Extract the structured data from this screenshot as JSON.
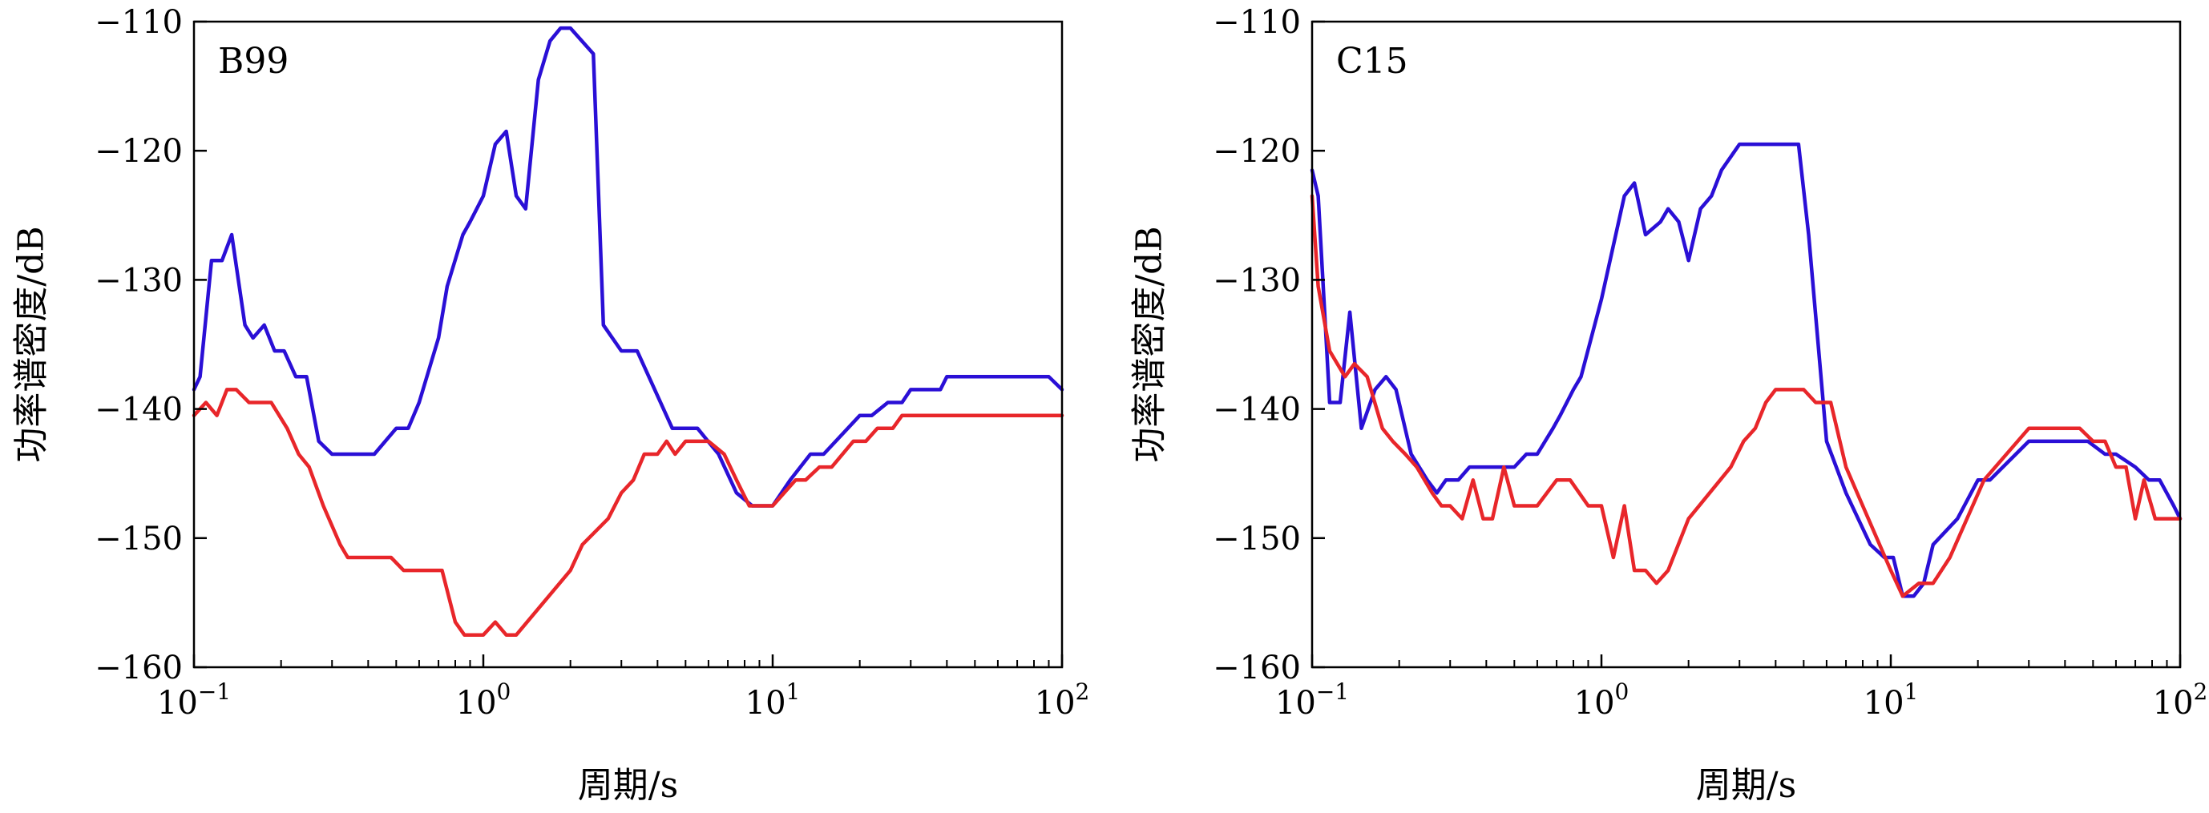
{
  "chart_data": [
    {
      "type": "line",
      "panel_label": "B99",
      "xlabel": "周期/s",
      "ylabel": "功率谱密度/dB",
      "x_scale": "log",
      "xlim": [
        0.1,
        100
      ],
      "ylim": [
        -160,
        -110
      ],
      "x_ticks": [
        {
          "value": 0.1,
          "base": "10",
          "exp": "−1"
        },
        {
          "value": 1,
          "base": "10",
          "exp": "0"
        },
        {
          "value": 10,
          "base": "10",
          "exp": "1"
        },
        {
          "value": 100,
          "base": "10",
          "exp": "2"
        }
      ],
      "y_ticks": [
        {
          "value": -110,
          "label": "−110"
        },
        {
          "value": -120,
          "label": "−120"
        },
        {
          "value": -130,
          "label": "−130"
        },
        {
          "value": -140,
          "label": "−140"
        },
        {
          "value": -150,
          "label": "−150"
        },
        {
          "value": -160,
          "label": "−160"
        }
      ],
      "series": [
        {
          "color": "#2a0fd6",
          "points": [
            [
              0.1,
              -138.5
            ],
            [
              0.105,
              -137.5
            ],
            [
              0.115,
              -128.5
            ],
            [
              0.125,
              -128.5
            ],
            [
              0.135,
              -126.5
            ],
            [
              0.15,
              -133.5
            ],
            [
              0.16,
              -134.5
            ],
            [
              0.175,
              -133.5
            ],
            [
              0.19,
              -135.5
            ],
            [
              0.205,
              -135.5
            ],
            [
              0.225,
              -137.5
            ],
            [
              0.245,
              -137.5
            ],
            [
              0.27,
              -142.5
            ],
            [
              0.3,
              -143.5
            ],
            [
              0.35,
              -143.5
            ],
            [
              0.42,
              -143.5
            ],
            [
              0.5,
              -141.5
            ],
            [
              0.55,
              -141.5
            ],
            [
              0.6,
              -139.5
            ],
            [
              0.7,
              -134.5
            ],
            [
              0.75,
              -130.5
            ],
            [
              0.85,
              -126.5
            ],
            [
              0.9,
              -125.5
            ],
            [
              1.0,
              -123.5
            ],
            [
              1.1,
              -119.5
            ],
            [
              1.2,
              -118.5
            ],
            [
              1.3,
              -123.5
            ],
            [
              1.4,
              -124.5
            ],
            [
              1.55,
              -114.5
            ],
            [
              1.7,
              -111.5
            ],
            [
              1.85,
              -110.5
            ],
            [
              2.0,
              -110.5
            ],
            [
              2.4,
              -112.5
            ],
            [
              2.6,
              -133.5
            ],
            [
              3.0,
              -135.5
            ],
            [
              3.4,
              -135.5
            ],
            [
              4.5,
              -141.5
            ],
            [
              5.5,
              -141.5
            ],
            [
              6.5,
              -143.5
            ],
            [
              7.5,
              -146.5
            ],
            [
              8.5,
              -147.5
            ],
            [
              10.0,
              -147.5
            ],
            [
              11.5,
              -145.5
            ],
            [
              13.5,
              -143.5
            ],
            [
              15.0,
              -143.5
            ],
            [
              20.0,
              -140.5
            ],
            [
              22.0,
              -140.5
            ],
            [
              25.0,
              -139.5
            ],
            [
              28.0,
              -139.5
            ],
            [
              30.0,
              -138.5
            ],
            [
              38.0,
              -138.5
            ],
            [
              40.0,
              -137.5
            ],
            [
              90.0,
              -137.5
            ],
            [
              100.0,
              -138.5
            ]
          ]
        },
        {
          "color": "#e8262a",
          "points": [
            [
              0.1,
              -140.5
            ],
            [
              0.11,
              -139.5
            ],
            [
              0.12,
              -140.5
            ],
            [
              0.13,
              -138.5
            ],
            [
              0.14,
              -138.5
            ],
            [
              0.155,
              -139.5
            ],
            [
              0.185,
              -139.5
            ],
            [
              0.21,
              -141.5
            ],
            [
              0.23,
              -143.5
            ],
            [
              0.25,
              -144.5
            ],
            [
              0.28,
              -147.5
            ],
            [
              0.32,
              -150.5
            ],
            [
              0.34,
              -151.5
            ],
            [
              0.4,
              -151.5
            ],
            [
              0.48,
              -151.5
            ],
            [
              0.53,
              -152.5
            ],
            [
              0.6,
              -152.5
            ],
            [
              0.72,
              -152.5
            ],
            [
              0.8,
              -156.5
            ],
            [
              0.86,
              -157.5
            ],
            [
              1.0,
              -157.5
            ],
            [
              1.1,
              -156.5
            ],
            [
              1.2,
              -157.5
            ],
            [
              1.3,
              -157.5
            ],
            [
              2.0,
              -152.5
            ],
            [
              2.2,
              -150.5
            ],
            [
              2.7,
              -148.5
            ],
            [
              3.0,
              -146.5
            ],
            [
              3.3,
              -145.5
            ],
            [
              3.6,
              -143.5
            ],
            [
              4.0,
              -143.5
            ],
            [
              4.3,
              -142.5
            ],
            [
              4.6,
              -143.5
            ],
            [
              5.0,
              -142.5
            ],
            [
              6.0,
              -142.5
            ],
            [
              6.8,
              -143.5
            ],
            [
              7.5,
              -145.5
            ],
            [
              8.3,
              -147.5
            ],
            [
              10.0,
              -147.5
            ],
            [
              12.0,
              -145.5
            ],
            [
              13.0,
              -145.5
            ],
            [
              14.5,
              -144.5
            ],
            [
              16.0,
              -144.5
            ],
            [
              19.0,
              -142.5
            ],
            [
              21.0,
              -142.5
            ],
            [
              23.0,
              -141.5
            ],
            [
              26.0,
              -141.5
            ],
            [
              28.0,
              -140.5
            ],
            [
              100.0,
              -140.5
            ]
          ]
        }
      ]
    },
    {
      "type": "line",
      "panel_label": "C15",
      "xlabel": "周期/s",
      "ylabel": "功率谱密度/dB",
      "x_scale": "log",
      "xlim": [
        0.1,
        100
      ],
      "ylim": [
        -160,
        -110
      ],
      "x_ticks": [
        {
          "value": 0.1,
          "base": "10",
          "exp": "−1"
        },
        {
          "value": 1,
          "base": "10",
          "exp": "0"
        },
        {
          "value": 10,
          "base": "10",
          "exp": "1"
        },
        {
          "value": 100,
          "base": "10",
          "exp": "2"
        }
      ],
      "y_ticks": [
        {
          "value": -110,
          "label": "−110"
        },
        {
          "value": -120,
          "label": "−120"
        },
        {
          "value": -130,
          "label": "−130"
        },
        {
          "value": -140,
          "label": "−140"
        },
        {
          "value": -150,
          "label": "−150"
        },
        {
          "value": -160,
          "label": "−160"
        }
      ],
      "series": [
        {
          "color": "#2a0fd6",
          "points": [
            [
              0.1,
              -121.5
            ],
            [
              0.105,
              -123.5
            ],
            [
              0.115,
              -139.5
            ],
            [
              0.125,
              -139.5
            ],
            [
              0.135,
              -132.5
            ],
            [
              0.148,
              -141.5
            ],
            [
              0.165,
              -138.5
            ],
            [
              0.18,
              -137.5
            ],
            [
              0.195,
              -138.5
            ],
            [
              0.22,
              -143.5
            ],
            [
              0.25,
              -145.5
            ],
            [
              0.27,
              -146.5
            ],
            [
              0.29,
              -145.5
            ],
            [
              0.32,
              -145.5
            ],
            [
              0.35,
              -144.5
            ],
            [
              0.42,
              -144.5
            ],
            [
              0.5,
              -144.5
            ],
            [
              0.55,
              -143.5
            ],
            [
              0.6,
              -143.5
            ],
            [
              0.68,
              -141.5
            ],
            [
              0.72,
              -140.5
            ],
            [
              0.8,
              -138.5
            ],
            [
              0.85,
              -137.5
            ],
            [
              1.0,
              -131.5
            ],
            [
              1.2,
              -123.5
            ],
            [
              1.3,
              -122.5
            ],
            [
              1.42,
              -126.5
            ],
            [
              1.6,
              -125.5
            ],
            [
              1.7,
              -124.5
            ],
            [
              1.85,
              -125.5
            ],
            [
              2.0,
              -128.5
            ],
            [
              2.2,
              -124.5
            ],
            [
              2.4,
              -123.5
            ],
            [
              2.6,
              -121.5
            ],
            [
              3.0,
              -119.5
            ],
            [
              4.8,
              -119.5
            ],
            [
              5.2,
              -126.5
            ],
            [
              6.0,
              -142.5
            ],
            [
              7.0,
              -146.5
            ],
            [
              8.5,
              -150.5
            ],
            [
              9.5,
              -151.5
            ],
            [
              10.2,
              -151.5
            ],
            [
              11.0,
              -154.5
            ],
            [
              12.0,
              -154.5
            ],
            [
              13.0,
              -153.5
            ],
            [
              14.0,
              -150.5
            ],
            [
              17.0,
              -148.5
            ],
            [
              20.0,
              -145.5
            ],
            [
              22.0,
              -145.5
            ],
            [
              30.0,
              -142.5
            ],
            [
              48.0,
              -142.5
            ],
            [
              55.0,
              -143.5
            ],
            [
              60.0,
              -143.5
            ],
            [
              70.0,
              -144.5
            ],
            [
              78.0,
              -145.5
            ],
            [
              85.0,
              -145.5
            ],
            [
              95.0,
              -147.5
            ],
            [
              100.0,
              -148.5
            ]
          ]
        },
        {
          "color": "#e8262a",
          "points": [
            [
              0.1,
              -123.5
            ],
            [
              0.105,
              -130.5
            ],
            [
              0.115,
              -135.5
            ],
            [
              0.13,
              -137.5
            ],
            [
              0.14,
              -136.5
            ],
            [
              0.155,
              -137.5
            ],
            [
              0.175,
              -141.5
            ],
            [
              0.19,
              -142.5
            ],
            [
              0.21,
              -143.5
            ],
            [
              0.23,
              -144.5
            ],
            [
              0.26,
              -146.5
            ],
            [
              0.28,
              -147.5
            ],
            [
              0.3,
              -147.5
            ],
            [
              0.33,
              -148.5
            ],
            [
              0.36,
              -145.5
            ],
            [
              0.39,
              -148.5
            ],
            [
              0.42,
              -148.5
            ],
            [
              0.46,
              -144.5
            ],
            [
              0.5,
              -147.5
            ],
            [
              0.6,
              -147.5
            ],
            [
              0.7,
              -145.5
            ],
            [
              0.78,
              -145.5
            ],
            [
              0.9,
              -147.5
            ],
            [
              1.0,
              -147.5
            ],
            [
              1.1,
              -151.5
            ],
            [
              1.2,
              -147.5
            ],
            [
              1.3,
              -152.5
            ],
            [
              1.42,
              -152.5
            ],
            [
              1.55,
              -153.5
            ],
            [
              1.7,
              -152.5
            ],
            [
              2.0,
              -148.5
            ],
            [
              2.8,
              -144.5
            ],
            [
              3.1,
              -142.5
            ],
            [
              3.4,
              -141.5
            ],
            [
              3.7,
              -139.5
            ],
            [
              4.0,
              -138.5
            ],
            [
              5.0,
              -138.5
            ],
            [
              5.5,
              -139.5
            ],
            [
              6.2,
              -139.5
            ],
            [
              7.0,
              -144.5
            ],
            [
              8.0,
              -147.5
            ],
            [
              10.0,
              -152.5
            ],
            [
              11.0,
              -154.5
            ],
            [
              12.5,
              -153.5
            ],
            [
              14.0,
              -153.5
            ],
            [
              16.0,
              -151.5
            ],
            [
              21.0,
              -145.5
            ],
            [
              30.0,
              -141.5
            ],
            [
              45.0,
              -141.5
            ],
            [
              50.0,
              -142.5
            ],
            [
              55.0,
              -142.5
            ],
            [
              60.0,
              -144.5
            ],
            [
              65.0,
              -144.5
            ],
            [
              70.0,
              -148.5
            ],
            [
              75.0,
              -145.5
            ],
            [
              82.0,
              -148.5
            ],
            [
              100.0,
              -148.5
            ]
          ]
        }
      ]
    }
  ]
}
